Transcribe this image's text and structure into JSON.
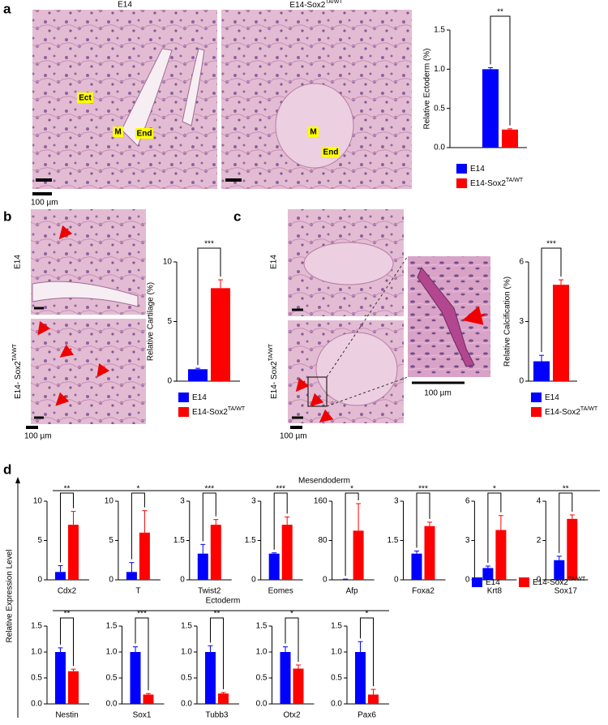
{
  "figure": {
    "panel_labels": [
      "a",
      "b",
      "c",
      "d"
    ],
    "image_titles": [
      "E14",
      "E14-Sox2"
    ],
    "image_title_superscript": "TA/WT",
    "row_labels": [
      "E14",
      "E14- Sox2"
    ],
    "annotations": [
      "Ect",
      "M",
      "End"
    ],
    "scale_bar": "100 µm",
    "groups": [
      "Mesendoderm",
      "Ectoderm"
    ],
    "expression_axis_label": "Relative Expression Level"
  },
  "chart_data": [
    {
      "type": "bar",
      "ylabel": "Relative Ectoderm (%)",
      "ylim": [
        0,
        1.5
      ],
      "yticks": [
        {
          "value": 0,
          "label": "0.0"
        },
        {
          "value": 0.5,
          "label": "0.5"
        },
        {
          "value": 1,
          "label": "1.0"
        },
        {
          "value": 1.5,
          "label": "1.5"
        }
      ],
      "significance": "**",
      "series": [
        {
          "name": "E14",
          "color": "#0000ff",
          "values": [
            1.0
          ],
          "errors": [
            0.02
          ]
        },
        {
          "name": "E14-Sox2",
          "name_superscript": "TA/WT",
          "color": "#ff0000",
          "values": [
            0.23
          ],
          "errors": [
            0.01
          ]
        }
      ]
    },
    {
      "type": "bar",
      "ylabel": "Relative Cartilage (%)",
      "ylim": [
        0,
        10
      ],
      "yticks": [
        0,
        5,
        10
      ],
      "significance": "***",
      "series": [
        {
          "name": "E14",
          "color": "#0000ff",
          "values": [
            1.0
          ],
          "errors": [
            0.08
          ]
        },
        {
          "name": "E14-Sox2",
          "name_superscript": "TA/WT",
          "color": "#ff0000",
          "values": [
            7.8
          ],
          "errors": [
            0.7
          ]
        }
      ]
    },
    {
      "type": "bar",
      "ylabel": "Relative Calcification (%)",
      "ylim": [
        0,
        6
      ],
      "yticks": [
        0,
        3,
        6
      ],
      "significance": "***",
      "series": [
        {
          "name": "E14",
          "color": "#0000ff",
          "values": [
            1.0
          ],
          "errors": [
            0.3
          ]
        },
        {
          "name": "E14-Sox2",
          "name_superscript": "TA/WT",
          "color": "#ff0000",
          "values": [
            4.85
          ],
          "errors": [
            0.25
          ]
        }
      ]
    },
    {
      "type": "bar",
      "xlabel": "Cdx2",
      "ylim": [
        0,
        10
      ],
      "yticks": [
        0,
        5,
        10
      ],
      "significance": "**",
      "series": [
        {
          "name": "E14",
          "color": "#0000ff",
          "values": [
            1.0
          ],
          "errors": [
            0.8
          ]
        },
        {
          "name": "E14-Sox2",
          "name_superscript": "TA/WT",
          "color": "#ff0000",
          "values": [
            7.0
          ],
          "errors": [
            1.7
          ]
        }
      ]
    },
    {
      "type": "bar",
      "xlabel": "T",
      "ylim": [
        0,
        10
      ],
      "yticks": [
        0,
        5,
        10
      ],
      "significance": "*",
      "series": [
        {
          "color": "#0000ff",
          "values": [
            1.0
          ],
          "errors": [
            1.2
          ]
        },
        {
          "color": "#ff0000",
          "values": [
            6.0
          ],
          "errors": [
            2.8
          ]
        }
      ]
    },
    {
      "type": "bar",
      "xlabel": "Twist2",
      "ylim": [
        0,
        3
      ],
      "yticks": [
        0,
        1.5,
        3
      ],
      "significance": "***",
      "series": [
        {
          "color": "#0000ff",
          "values": [
            1.0
          ],
          "errors": [
            0.35
          ]
        },
        {
          "color": "#ff0000",
          "values": [
            2.1
          ],
          "errors": [
            0.2
          ]
        }
      ]
    },
    {
      "type": "bar",
      "xlabel": "Eomes",
      "ylim": [
        0,
        3
      ],
      "yticks": [
        0,
        1.5,
        3
      ],
      "significance": "***",
      "series": [
        {
          "color": "#0000ff",
          "values": [
            1.0
          ],
          "errors": [
            0.03
          ]
        },
        {
          "color": "#ff0000",
          "values": [
            2.1
          ],
          "errors": [
            0.3
          ]
        }
      ]
    },
    {
      "type": "bar",
      "xlabel": "Afp",
      "ylim": [
        0,
        160
      ],
      "yticks": [
        0,
        80,
        160
      ],
      "significance": "*",
      "series": [
        {
          "color": "#0000ff",
          "values": [
            1
          ],
          "errors": [
            0.5
          ]
        },
        {
          "color": "#ff0000",
          "values": [
            100
          ],
          "errors": [
            55
          ]
        }
      ]
    },
    {
      "type": "bar",
      "xlabel": "Foxa2",
      "ylim": [
        0,
        3
      ],
      "yticks": [
        0,
        1.5,
        3
      ],
      "significance": "***",
      "series": [
        {
          "color": "#0000ff",
          "values": [
            1.0
          ],
          "errors": [
            0.1
          ]
        },
        {
          "color": "#ff0000",
          "values": [
            2.05
          ],
          "errors": [
            0.15
          ]
        }
      ]
    },
    {
      "type": "bar",
      "xlabel": "Krt8",
      "ylim": [
        0,
        6
      ],
      "yticks": [
        0,
        3,
        6
      ],
      "significance": "*",
      "series": [
        {
          "color": "#0000ff",
          "values": [
            0.9
          ],
          "errors": [
            0.15
          ]
        },
        {
          "color": "#ff0000",
          "values": [
            3.8
          ],
          "errors": [
            1.1
          ]
        }
      ]
    },
    {
      "type": "bar",
      "xlabel": "Sox17",
      "ylim": [
        0,
        4
      ],
      "yticks": [
        0,
        2,
        4
      ],
      "significance": "**",
      "series": [
        {
          "color": "#0000ff",
          "values": [
            1.0
          ],
          "errors": [
            0.2
          ]
        },
        {
          "color": "#ff0000",
          "values": [
            3.1
          ],
          "errors": [
            0.2
          ]
        }
      ]
    },
    {
      "type": "bar",
      "xlabel": "Nestin",
      "ylim": [
        0,
        1.5
      ],
      "yticks": [
        {
          "value": 0,
          "label": "0.0"
        },
        {
          "value": 0.5,
          "label": "0.5"
        },
        {
          "value": 1,
          "label": "1.0"
        },
        {
          "value": 1.5,
          "label": "1.5"
        }
      ],
      "significance": "**",
      "series": [
        {
          "color": "#0000ff",
          "values": [
            1.0
          ],
          "errors": [
            0.08
          ]
        },
        {
          "color": "#ff0000",
          "values": [
            0.63
          ],
          "errors": [
            0.04
          ]
        }
      ]
    },
    {
      "type": "bar",
      "xlabel": "Sox1",
      "ylim": [
        0,
        1.5
      ],
      "yticks": [
        {
          "value": 0,
          "label": "0.0"
        },
        {
          "value": 0.5,
          "label": "0.5"
        },
        {
          "value": 1,
          "label": "1.0"
        },
        {
          "value": 1.5,
          "label": "1.5"
        }
      ],
      "significance": "***",
      "series": [
        {
          "color": "#0000ff",
          "values": [
            1.0
          ],
          "errors": [
            0.1
          ]
        },
        {
          "color": "#ff0000",
          "values": [
            0.18
          ],
          "errors": [
            0.02
          ]
        }
      ]
    },
    {
      "type": "bar",
      "xlabel": "Tubb3",
      "ylim": [
        0,
        1.5
      ],
      "yticks": [
        {
          "value": 0,
          "label": "0.0"
        },
        {
          "value": 0.5,
          "label": "0.5"
        },
        {
          "value": 1,
          "label": "1.0"
        },
        {
          "value": 1.5,
          "label": "1.5"
        }
      ],
      "significance": "**",
      "series": [
        {
          "color": "#0000ff",
          "values": [
            1.0
          ],
          "errors": [
            0.12
          ]
        },
        {
          "color": "#ff0000",
          "values": [
            0.2
          ],
          "errors": [
            0.02
          ]
        }
      ]
    },
    {
      "type": "bar",
      "xlabel": "Otx2",
      "ylim": [
        0,
        1.5
      ],
      "yticks": [
        {
          "value": 0,
          "label": "0.0"
        },
        {
          "value": 0.5,
          "label": "0.5"
        },
        {
          "value": 1,
          "label": "1.0"
        },
        {
          "value": 1.5,
          "label": "1.5"
        }
      ],
      "significance": "*",
      "series": [
        {
          "color": "#0000ff",
          "values": [
            1.0
          ],
          "errors": [
            0.1
          ]
        },
        {
          "color": "#ff0000",
          "values": [
            0.68
          ],
          "errors": [
            0.07
          ]
        }
      ]
    },
    {
      "type": "bar",
      "xlabel": "Pax6",
      "ylim": [
        0,
        1.5
      ],
      "yticks": [
        {
          "value": 0,
          "label": "0.0"
        },
        {
          "value": 0.5,
          "label": "0.5"
        },
        {
          "value": 1,
          "label": "1.0"
        },
        {
          "value": 1.5,
          "label": "1.5"
        }
      ],
      "significance": "*",
      "series": [
        {
          "color": "#0000ff",
          "values": [
            1.0
          ],
          "errors": [
            0.2
          ]
        },
        {
          "color": "#ff0000",
          "values": [
            0.18
          ],
          "errors": [
            0.1
          ]
        }
      ]
    }
  ]
}
